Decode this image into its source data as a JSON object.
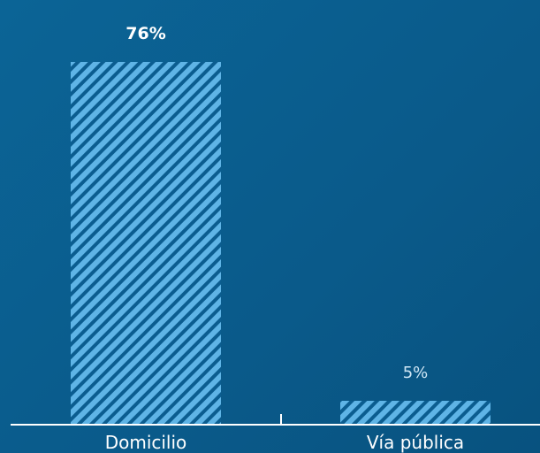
{
  "chart_data": {
    "type": "bar",
    "categories": [
      "Domicilio",
      "Vía pública"
    ],
    "values": [
      76,
      5
    ],
    "data_labels": [
      "76%",
      "5%"
    ],
    "ylim": [
      0,
      76
    ],
    "grid": false,
    "colors": {
      "background": "#0a5a8a",
      "bar_fill": "#5fb4e6",
      "bar_stripe": "#0b5d90",
      "axis": "#ffffff",
      "label": "#ffffff",
      "label_muted": "#cfe6f5"
    }
  }
}
